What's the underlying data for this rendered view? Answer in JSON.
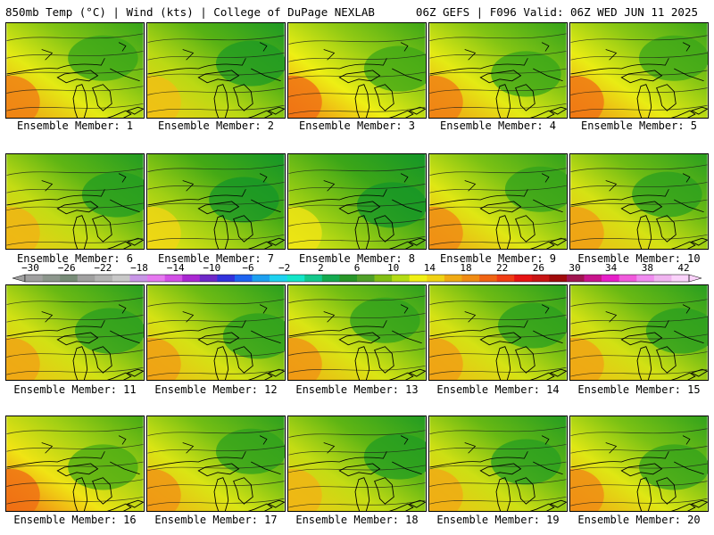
{
  "header": {
    "left": "850mb Temp (°C) | Wind (kts) | College of DuPage NEXLAB",
    "right": "06Z GEFS | F096 Valid: 06Z WED JUN 11 2025"
  },
  "colorbar": {
    "ticks": [
      "−30",
      "−26",
      "−22",
      "−18",
      "−14",
      "−10",
      "−6",
      "−2",
      "2",
      "6",
      "10",
      "14",
      "18",
      "22",
      "26",
      "30",
      "34",
      "38",
      "42"
    ],
    "colors": [
      "#a0a0a0",
      "#8c968c",
      "#788c78",
      "#a0a0a0",
      "#b4b4b4",
      "#c8c8c8",
      "#c896e6",
      "#e678f0",
      "#d250e6",
      "#aa28d2",
      "#6e28c8",
      "#3232dc",
      "#1e64f0",
      "#1ea0f0",
      "#1ed2f0",
      "#14e6c8",
      "#14c88c",
      "#14aa50",
      "#289628",
      "#50a028",
      "#82be14",
      "#b4dc14",
      "#f0f014",
      "#f0d214",
      "#f0aa14",
      "#f08c14",
      "#f06414",
      "#f03c14",
      "#e61414",
      "#c81414",
      "#a00a0a",
      "#a01450",
      "#c8148c",
      "#e61ec8",
      "#f05adc",
      "#f08cf0",
      "#f0b4f0",
      "#fad2fa"
    ]
  },
  "members": [
    {
      "label": "Ensemble Member: 1",
      "warm": 0.62
    },
    {
      "label": "Ensemble Member: 2",
      "warm": 0.5
    },
    {
      "label": "Ensemble Member: 3",
      "warm": 0.66
    },
    {
      "label": "Ensemble Member: 4",
      "warm": 0.62
    },
    {
      "label": "Ensemble Member: 5",
      "warm": 0.64
    },
    {
      "label": "Ensemble Member: 6",
      "warm": 0.52
    },
    {
      "label": "Ensemble Member: 7",
      "warm": 0.44
    },
    {
      "label": "Ensemble Member: 8",
      "warm": 0.4
    },
    {
      "label": "Ensemble Member: 9",
      "warm": 0.6
    },
    {
      "label": "Ensemble Member: 10",
      "warm": 0.56
    },
    {
      "label": "Ensemble Member: 11",
      "warm": 0.55
    },
    {
      "label": "Ensemble Member: 12",
      "warm": 0.56
    },
    {
      "label": "Ensemble Member: 13",
      "warm": 0.58
    },
    {
      "label": "Ensemble Member: 14",
      "warm": 0.56
    },
    {
      "label": "Ensemble Member: 15",
      "warm": 0.55
    },
    {
      "label": "Ensemble Member: 16",
      "warm": 0.7
    },
    {
      "label": "Ensemble Member: 17",
      "warm": 0.58
    },
    {
      "label": "Ensemble Member: 18",
      "warm": 0.52
    },
    {
      "label": "Ensemble Member: 19",
      "warm": 0.54
    },
    {
      "label": "Ensemble Member: 20",
      "warm": 0.6
    }
  ]
}
